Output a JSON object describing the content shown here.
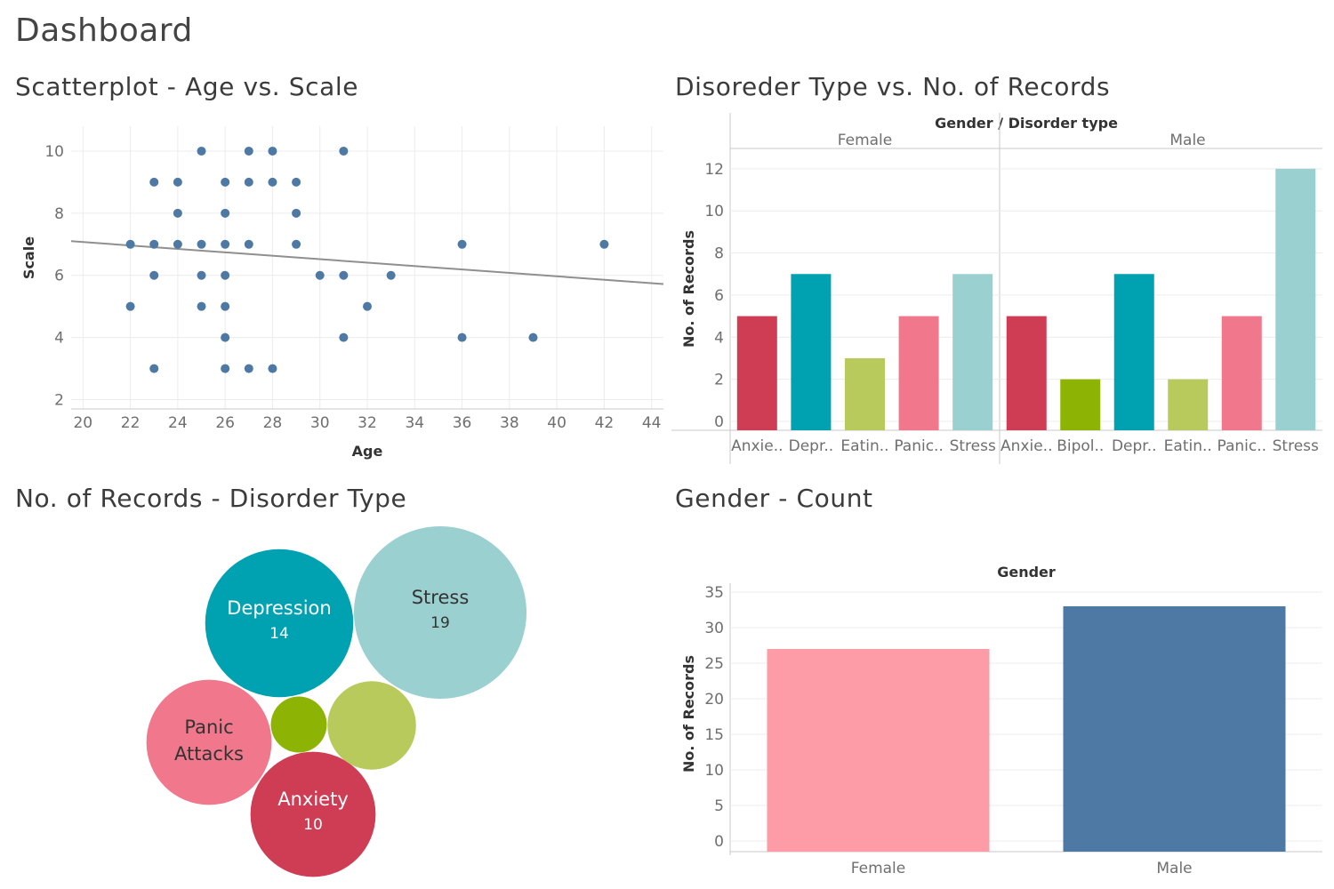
{
  "dashboard": {
    "title": "Dashboard"
  },
  "colors": {
    "anxiety": "#cf3d55",
    "bipolar": "#8db304",
    "depression": "#00a2b1",
    "eating": "#b9ca5c",
    "panic": "#f0778c",
    "stress": "#9bd0d0",
    "female": "#fd9ba6",
    "male": "#4e79a5",
    "points": "#4e79a5",
    "trend": "#8f8f8f"
  },
  "chart_data": [
    {
      "type": "scatter",
      "title": "Scatterplot - Age vs. Scale",
      "xlabel": "Age",
      "ylabel": "Scale",
      "xlim": [
        19.5,
        44.5
      ],
      "ylim": [
        1.7,
        10.8
      ],
      "xticks": [
        "20",
        "22",
        "24",
        "26",
        "28",
        "30",
        "32",
        "34",
        "36",
        "38",
        "40",
        "42",
        "44"
      ],
      "yticks": [
        "2",
        "4",
        "6",
        "8",
        "10"
      ],
      "points": [
        {
          "x": 22,
          "y": 7
        },
        {
          "x": 22,
          "y": 5
        },
        {
          "x": 23,
          "y": 9
        },
        {
          "x": 23,
          "y": 7
        },
        {
          "x": 23,
          "y": 6
        },
        {
          "x": 23,
          "y": 3
        },
        {
          "x": 24,
          "y": 9
        },
        {
          "x": 24,
          "y": 8
        },
        {
          "x": 24,
          "y": 7
        },
        {
          "x": 25,
          "y": 10
        },
        {
          "x": 25,
          "y": 7
        },
        {
          "x": 25,
          "y": 6
        },
        {
          "x": 25,
          "y": 5
        },
        {
          "x": 26,
          "y": 9
        },
        {
          "x": 26,
          "y": 8
        },
        {
          "x": 26,
          "y": 7
        },
        {
          "x": 26,
          "y": 6
        },
        {
          "x": 26,
          "y": 5
        },
        {
          "x": 26,
          "y": 4
        },
        {
          "x": 26,
          "y": 3
        },
        {
          "x": 27,
          "y": 10
        },
        {
          "x": 27,
          "y": 9
        },
        {
          "x": 27,
          "y": 7
        },
        {
          "x": 27,
          "y": 3
        },
        {
          "x": 28,
          "y": 10
        },
        {
          "x": 28,
          "y": 9
        },
        {
          "x": 28,
          "y": 3
        },
        {
          "x": 29,
          "y": 9
        },
        {
          "x": 29,
          "y": 8
        },
        {
          "x": 29,
          "y": 7
        },
        {
          "x": 30,
          "y": 6
        },
        {
          "x": 31,
          "y": 10
        },
        {
          "x": 31,
          "y": 6
        },
        {
          "x": 31,
          "y": 4
        },
        {
          "x": 32,
          "y": 5
        },
        {
          "x": 33,
          "y": 6
        },
        {
          "x": 36,
          "y": 7
        },
        {
          "x": 36,
          "y": 4
        },
        {
          "x": 39,
          "y": 4
        },
        {
          "x": 42,
          "y": 7
        }
      ],
      "trendline": {
        "x": [
          19.5,
          44.5
        ],
        "y": [
          7.1,
          5.72
        ]
      }
    },
    {
      "type": "bar",
      "title": "Disoreder Type vs. No. of Records",
      "header": "Gender  /  Disorder type",
      "ylabel": "No. of Records",
      "ylim": [
        0,
        12.5
      ],
      "yticks": [
        "0",
        "2",
        "4",
        "6",
        "8",
        "10",
        "12"
      ],
      "groups": [
        {
          "name": "Female",
          "bars": [
            {
              "label": "Anxie..",
              "value": 5,
              "color": "anxiety"
            },
            {
              "label": "Depr..",
              "value": 7,
              "color": "depression"
            },
            {
              "label": "Eatin..",
              "value": 3,
              "color": "eating"
            },
            {
              "label": "Panic..",
              "value": 5,
              "color": "panic"
            },
            {
              "label": "Stress",
              "value": 7,
              "color": "stress"
            }
          ]
        },
        {
          "name": "Male",
          "bars": [
            {
              "label": "Anxie..",
              "value": 5,
              "color": "anxiety"
            },
            {
              "label": "Bipol..",
              "value": 2,
              "color": "bipolar"
            },
            {
              "label": "Depr..",
              "value": 7,
              "color": "depression"
            },
            {
              "label": "Eatin..",
              "value": 2,
              "color": "eating"
            },
            {
              "label": "Panic..",
              "value": 5,
              "color": "panic"
            },
            {
              "label": "Stress",
              "value": 12,
              "color": "stress"
            }
          ]
        }
      ]
    },
    {
      "type": "bubble",
      "title": "No. of Records - Disorder Type",
      "bubbles": [
        {
          "name": "Stress",
          "label_lines": [
            "Stress"
          ],
          "value": 19,
          "value_label": "19",
          "color": "stress",
          "text": "#333333"
        },
        {
          "name": "Depression",
          "label_lines": [
            "Depression"
          ],
          "value": 14,
          "value_label": "14",
          "color": "depression",
          "text": "#ffffff"
        },
        {
          "name": "Panic Attacks",
          "label_lines": [
            "Panic",
            "Attacks"
          ],
          "value": 10,
          "value_label": "",
          "color": "panic",
          "text": "#333333"
        },
        {
          "name": "Anxiety",
          "label_lines": [
            "Anxiety"
          ],
          "value": 10,
          "value_label": "10",
          "color": "anxiety",
          "text": "#ffffff"
        },
        {
          "name": "Eating disorder",
          "label_lines": [],
          "value": 5,
          "value_label": "",
          "color": "eating",
          "text": "#333333"
        },
        {
          "name": "Bipolar",
          "label_lines": [],
          "value": 2,
          "value_label": "",
          "color": "bipolar",
          "text": "#333333"
        }
      ]
    },
    {
      "type": "bar",
      "title": "Gender - Count",
      "header": "Gender",
      "ylabel": "No. of Records",
      "ylim": [
        0,
        35
      ],
      "yticks": [
        "0",
        "5",
        "10",
        "15",
        "20",
        "25",
        "30",
        "35"
      ],
      "categories": [
        "Female",
        "Male"
      ],
      "values": [
        27,
        33
      ],
      "bar_colors": [
        "female",
        "male"
      ]
    }
  ]
}
